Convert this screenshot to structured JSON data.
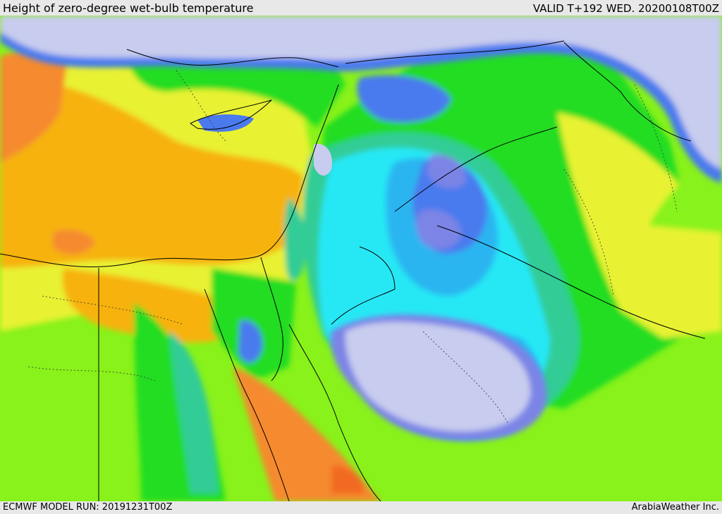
{
  "header": {
    "title": "Height of zero-degree wet-bulb temperature",
    "valid_time": "VALID T+192 WED. 20200108T00Z"
  },
  "footer": {
    "model_run": "ECMWF MODEL RUN: 20191231T00Z",
    "credit": "ArabiaWeather Inc."
  },
  "palette": {
    "lavender": "#c8ccee",
    "violet": "#7b84e6",
    "blue": "#4a7aee",
    "sky": "#2bb5f0",
    "cyan": "#28e8f5",
    "teal": "#32cc96",
    "green": "#22dd22",
    "lime": "#88f21a",
    "yellow": "#e8f232",
    "amber": "#f7b20a",
    "orange": "#f58a2e",
    "red_orange": "#f26a22"
  }
}
